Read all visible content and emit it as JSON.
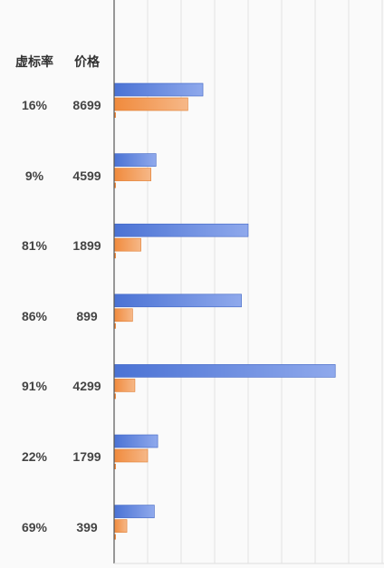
{
  "headers": {
    "rate": "虚标率",
    "price": "价格"
  },
  "chart_data": {
    "type": "bar",
    "orientation": "horizontal",
    "title": "",
    "xlabel": "",
    "ylabel": "",
    "grid": true,
    "categories": [
      "16%",
      "9%",
      "81%",
      "86%",
      "91%",
      "22%",
      "69%"
    ],
    "prices": [
      "8699",
      "4599",
      "1899",
      "899",
      "4299",
      "1799",
      "399"
    ],
    "xlim": [
      0,
      8
    ],
    "series": [
      {
        "color": "#4a72d4",
        "values": [
          2.65,
          1.25,
          4.0,
          3.8,
          6.6,
          1.3,
          1.2
        ]
      },
      {
        "color": "#f08a3c",
        "values": [
          2.2,
          1.1,
          0.8,
          0.55,
          0.62,
          1.0,
          0.38
        ]
      }
    ]
  }
}
